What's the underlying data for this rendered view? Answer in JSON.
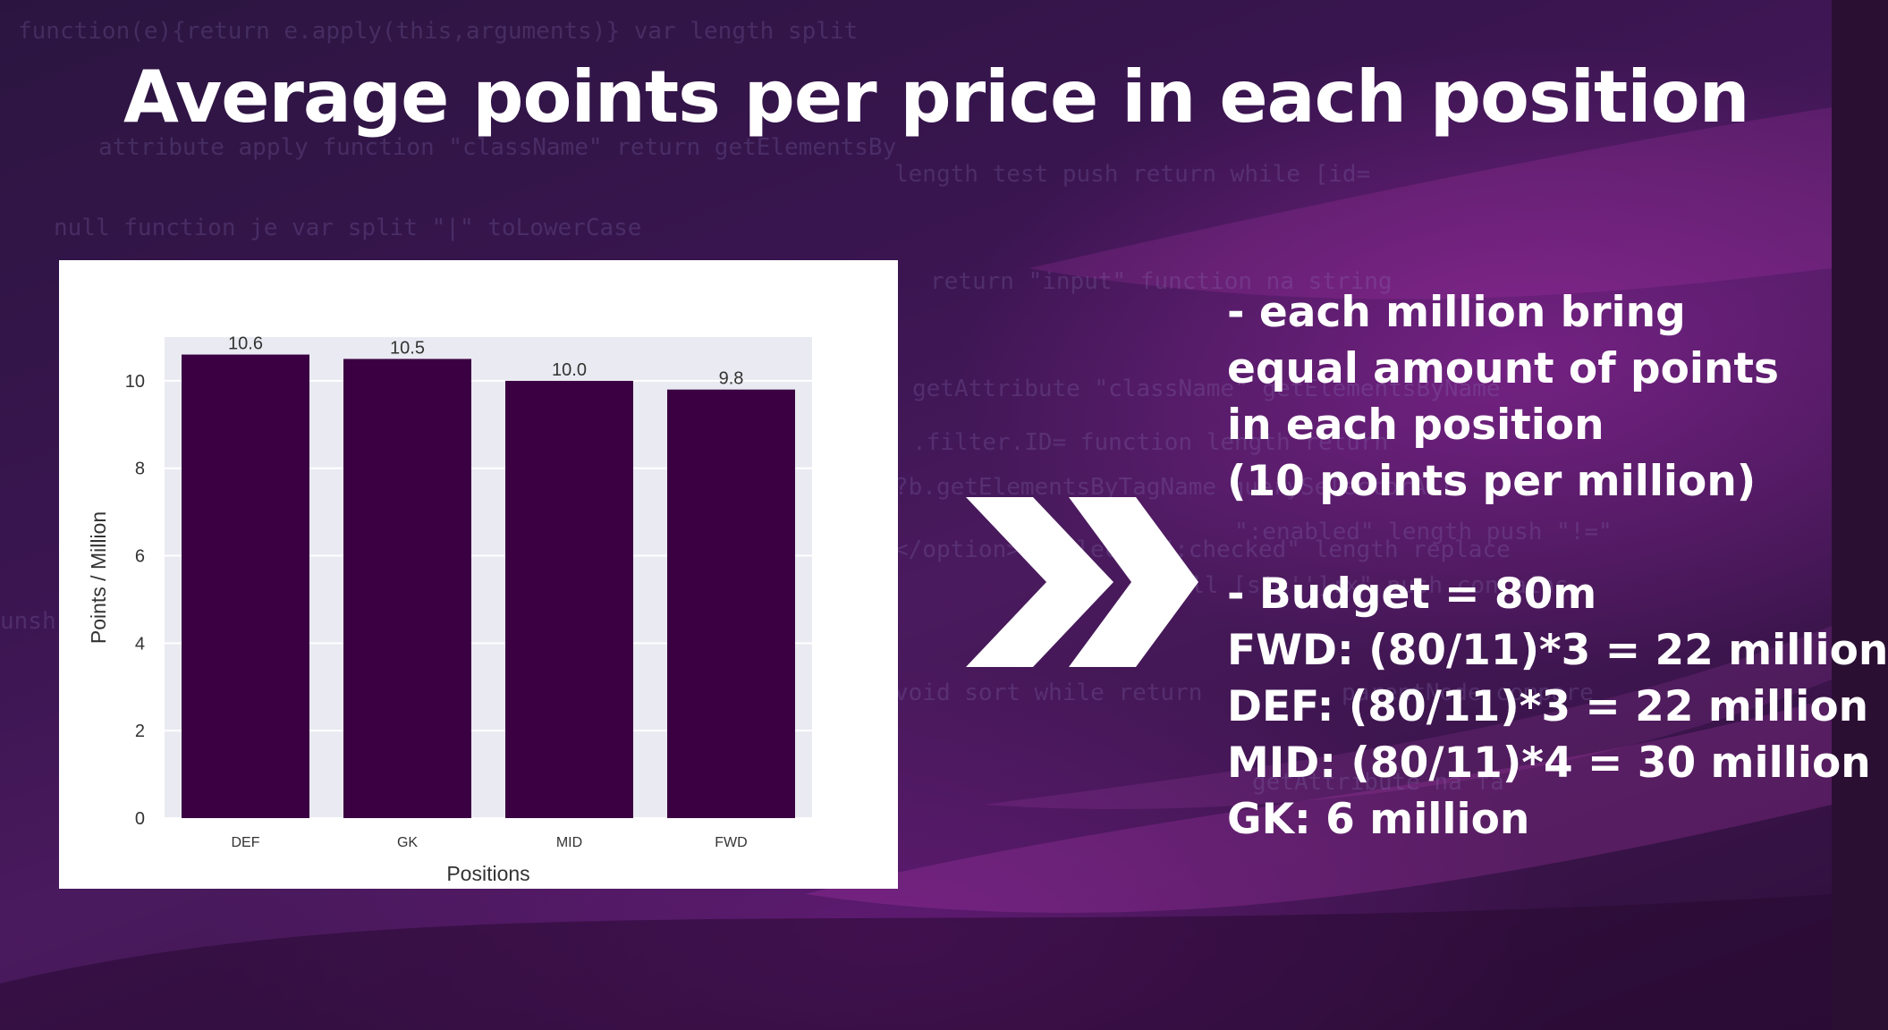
{
  "slide": {
    "title": "Average points per price in each position",
    "notes_group1": [
      "- each million bring",
      "equal amount of points",
      "in each position",
      "(10 points per million)"
    ],
    "notes_group2": [
      "- Budget = 80m",
      "FWD: (80/11)*3 = 22 million",
      "DEF: (80/11)*3 = 22 million",
      "MID: (80/11)*4 = 30 million",
      "GK: 6 million"
    ],
    "arrow_icon": "double-chevron-right-icon"
  },
  "chart_data": {
    "type": "bar",
    "categories": [
      "DEF",
      "GK",
      "MID",
      "FWD"
    ],
    "values": [
      10.6,
      10.5,
      10.0,
      9.8
    ],
    "value_labels": [
      "10.6",
      "10.5",
      "10.0",
      "9.8"
    ],
    "xlabel": "Positions",
    "ylabel": "Points / Million",
    "ylim": [
      0,
      11
    ],
    "yticks": [
      0,
      2,
      4,
      6,
      8,
      10
    ],
    "grid": true,
    "bar_color": "#3a0042",
    "plot_background": "#eaeaf2"
  }
}
